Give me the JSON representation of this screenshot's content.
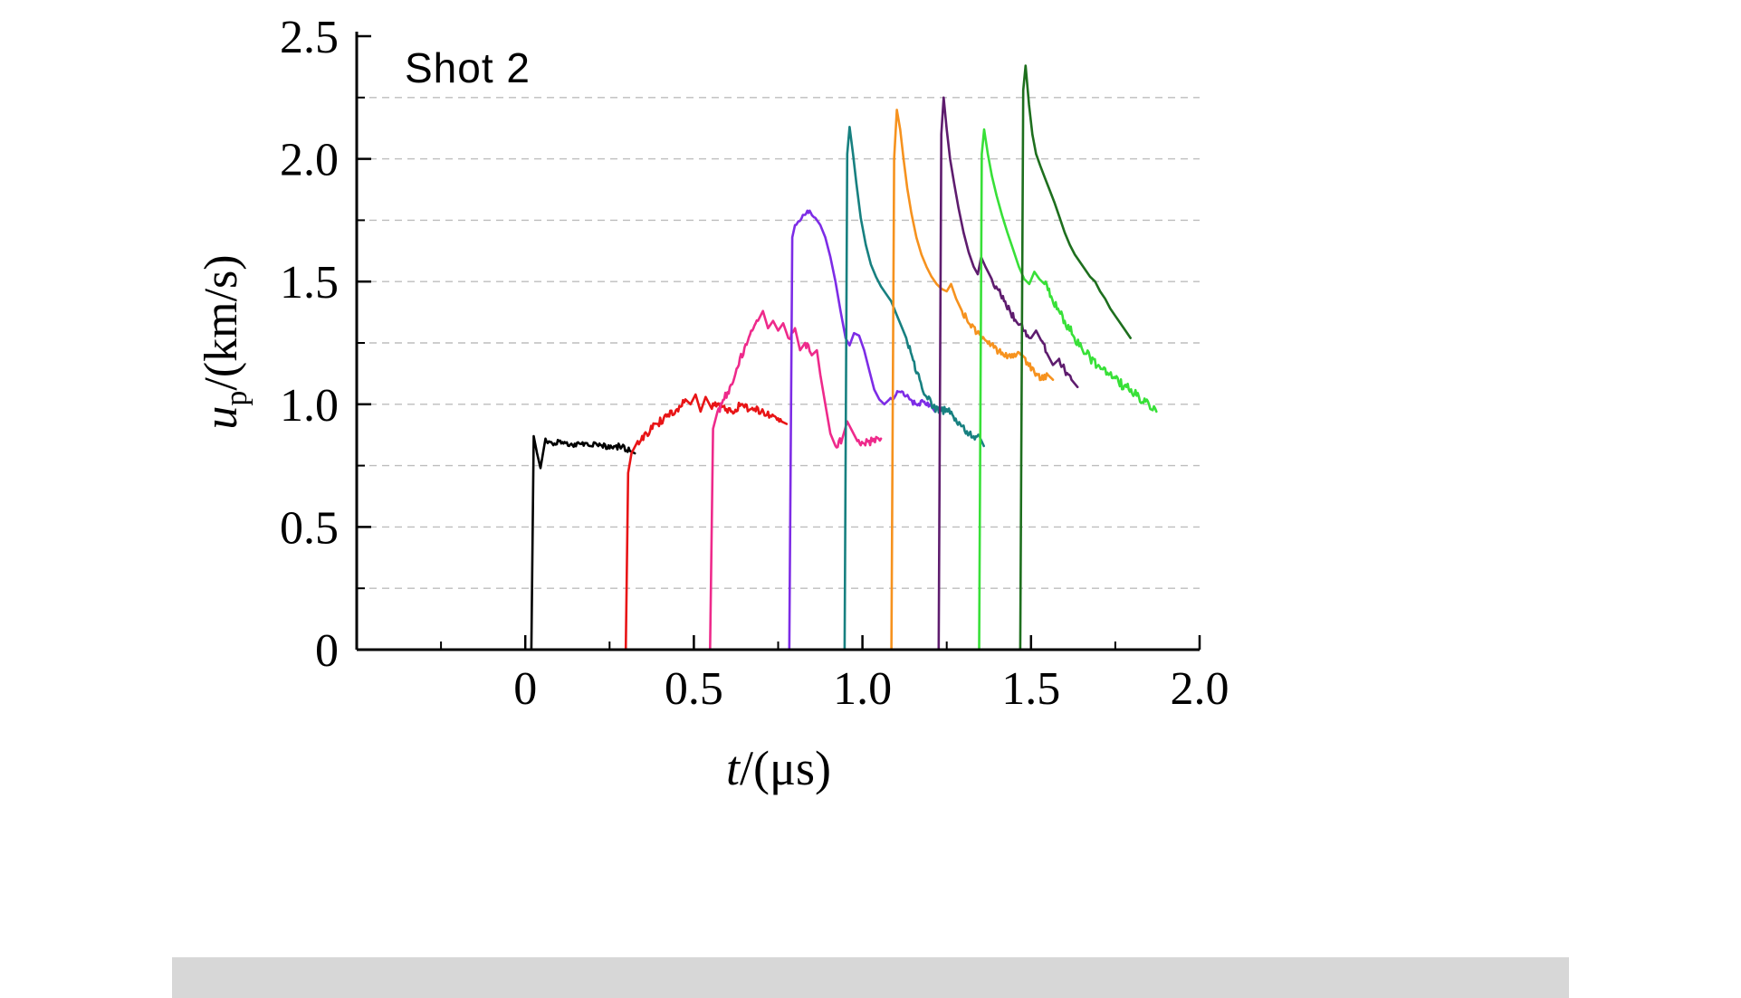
{
  "chart": {
    "title": "Shot 2",
    "xlabel": {
      "var": "t",
      "rest": "/(μs)"
    },
    "ylabel": {
      "var": "u",
      "sub": "p",
      "rest": "/(km/s)"
    }
  },
  "chart_data": {
    "type": "line",
    "title": "Shot 2",
    "xlabel": "t/(μs)",
    "ylabel": "u_p/(km/s)",
    "xlim": [
      -0.5,
      2.0
    ],
    "ylim": [
      0,
      2.5
    ],
    "x_tick_values": [
      0,
      0.5,
      1.0,
      1.5,
      2.0
    ],
    "x_tick_labels": [
      "0",
      "0.5",
      "1.0",
      "1.5",
      "2.0"
    ],
    "x_minor_tick_values": [
      -0.25,
      0.25,
      0.75,
      1.25,
      1.75
    ],
    "y_tick_values": [
      0,
      0.5,
      1.0,
      1.5,
      2.0,
      2.5
    ],
    "y_tick_labels": [
      "0",
      "0.5",
      "1.0",
      "1.5",
      "2.0",
      "2.5"
    ],
    "y_minor_tick_values": [
      0.25,
      0.75,
      1.25,
      1.75,
      2.25
    ],
    "grid": {
      "y_step": 0.25,
      "style": "dashed",
      "color": "#bdbdbd"
    },
    "legend": "none",
    "series": [
      {
        "name": "trace-black",
        "color": "#000000",
        "noise": 0.012,
        "points": [
          [
            0.018,
            0
          ],
          [
            0.025,
            0.87
          ],
          [
            0.035,
            0.8
          ],
          [
            0.045,
            0.74
          ],
          [
            0.06,
            0.86
          ],
          [
            0.08,
            0.84
          ],
          [
            0.1,
            0.85
          ],
          [
            0.13,
            0.83
          ],
          [
            0.16,
            0.84
          ],
          [
            0.19,
            0.83
          ],
          [
            0.22,
            0.84
          ],
          [
            0.25,
            0.82
          ],
          [
            0.28,
            0.83
          ],
          [
            0.31,
            0.81
          ],
          [
            0.325,
            0.8
          ]
        ]
      },
      {
        "name": "trace-red",
        "color": "#e81416",
        "noise": 0.016,
        "points": [
          [
            0.298,
            0
          ],
          [
            0.305,
            0.72
          ],
          [
            0.315,
            0.8
          ],
          [
            0.33,
            0.84
          ],
          [
            0.36,
            0.88
          ],
          [
            0.39,
            0.92
          ],
          [
            0.42,
            0.95
          ],
          [
            0.45,
            0.98
          ],
          [
            0.475,
            1.02
          ],
          [
            0.49,
            1.0
          ],
          [
            0.505,
            1.04
          ],
          [
            0.52,
            0.97
          ],
          [
            0.535,
            1.03
          ],
          [
            0.55,
            0.99
          ],
          [
            0.58,
            1.0
          ],
          [
            0.61,
            0.97
          ],
          [
            0.64,
            1.0
          ],
          [
            0.67,
            0.98
          ],
          [
            0.7,
            0.97
          ],
          [
            0.73,
            0.95
          ],
          [
            0.76,
            0.93
          ],
          [
            0.775,
            0.92
          ]
        ]
      },
      {
        "name": "trace-magenta",
        "color": "#ee2a8b",
        "noise": 0.018,
        "points": [
          [
            0.548,
            0
          ],
          [
            0.557,
            0.9
          ],
          [
            0.57,
            0.97
          ],
          [
            0.59,
            1.02
          ],
          [
            0.61,
            1.08
          ],
          [
            0.63,
            1.15
          ],
          [
            0.65,
            1.23
          ],
          [
            0.67,
            1.3
          ],
          [
            0.69,
            1.34
          ],
          [
            0.705,
            1.38
          ],
          [
            0.72,
            1.31
          ],
          [
            0.735,
            1.34
          ],
          [
            0.75,
            1.3
          ],
          [
            0.765,
            1.33
          ],
          [
            0.78,
            1.27
          ],
          [
            0.8,
            1.31
          ],
          [
            0.815,
            1.22
          ],
          [
            0.83,
            1.25
          ],
          [
            0.85,
            1.2
          ],
          [
            0.865,
            1.22
          ],
          [
            0.875,
            1.12
          ],
          [
            0.89,
            1.0
          ],
          [
            0.905,
            0.88
          ],
          [
            0.92,
            0.83
          ],
          [
            0.94,
            0.86
          ],
          [
            0.955,
            0.93
          ],
          [
            0.97,
            0.89
          ],
          [
            0.985,
            0.85
          ],
          [
            1.005,
            0.84
          ],
          [
            1.03,
            0.85
          ],
          [
            1.055,
            0.86
          ]
        ]
      },
      {
        "name": "trace-violet",
        "color": "#7d2ce6",
        "noise": 0.013,
        "points": [
          [
            0.783,
            0
          ],
          [
            0.792,
            1.68
          ],
          [
            0.8,
            1.73
          ],
          [
            0.82,
            1.76
          ],
          [
            0.84,
            1.78
          ],
          [
            0.86,
            1.76
          ],
          [
            0.875,
            1.73
          ],
          [
            0.89,
            1.68
          ],
          [
            0.905,
            1.6
          ],
          [
            0.92,
            1.5
          ],
          [
            0.935,
            1.38
          ],
          [
            0.95,
            1.27
          ],
          [
            0.962,
            1.24
          ],
          [
            0.975,
            1.29
          ],
          [
            0.99,
            1.28
          ],
          [
            1.005,
            1.22
          ],
          [
            1.02,
            1.14
          ],
          [
            1.035,
            1.06
          ],
          [
            1.05,
            1.02
          ],
          [
            1.065,
            1.0
          ],
          [
            1.08,
            1.02
          ],
          [
            1.1,
            1.04
          ],
          [
            1.12,
            1.05
          ],
          [
            1.14,
            1.02
          ],
          [
            1.16,
            1.0
          ],
          [
            1.18,
            1.01
          ],
          [
            1.2,
            1.0
          ],
          [
            1.215,
            0.97
          ]
        ]
      },
      {
        "name": "trace-teal",
        "color": "#178080",
        "noise": 0.015,
        "points": [
          [
            0.947,
            0
          ],
          [
            0.955,
            2.02
          ],
          [
            0.962,
            2.13
          ],
          [
            0.972,
            2.02
          ],
          [
            0.982,
            1.9
          ],
          [
            0.995,
            1.76
          ],
          [
            1.01,
            1.65
          ],
          [
            1.025,
            1.57
          ],
          [
            1.04,
            1.52
          ],
          [
            1.055,
            1.48
          ],
          [
            1.07,
            1.45
          ],
          [
            1.085,
            1.42
          ],
          [
            1.1,
            1.37
          ],
          [
            1.115,
            1.32
          ],
          [
            1.13,
            1.27
          ],
          [
            1.15,
            1.18
          ],
          [
            1.17,
            1.1
          ],
          [
            1.19,
            1.03
          ],
          [
            1.21,
            0.99
          ],
          [
            1.23,
            0.97
          ],
          [
            1.25,
            0.98
          ],
          [
            1.27,
            0.95
          ],
          [
            1.29,
            0.92
          ],
          [
            1.31,
            0.89
          ],
          [
            1.33,
            0.87
          ],
          [
            1.35,
            0.86
          ],
          [
            1.36,
            0.83
          ]
        ]
      },
      {
        "name": "trace-orange",
        "color": "#f6921e",
        "noise": 0.015,
        "points": [
          [
            1.086,
            0
          ],
          [
            1.094,
            2.0
          ],
          [
            1.102,
            2.2
          ],
          [
            1.112,
            2.12
          ],
          [
            1.122,
            2.0
          ],
          [
            1.133,
            1.88
          ],
          [
            1.145,
            1.78
          ],
          [
            1.16,
            1.68
          ],
          [
            1.175,
            1.61
          ],
          [
            1.19,
            1.56
          ],
          [
            1.205,
            1.52
          ],
          [
            1.22,
            1.49
          ],
          [
            1.235,
            1.47
          ],
          [
            1.25,
            1.46
          ],
          [
            1.263,
            1.49
          ],
          [
            1.278,
            1.43
          ],
          [
            1.295,
            1.38
          ],
          [
            1.315,
            1.33
          ],
          [
            1.34,
            1.29
          ],
          [
            1.365,
            1.26
          ],
          [
            1.39,
            1.23
          ],
          [
            1.415,
            1.21
          ],
          [
            1.44,
            1.19
          ],
          [
            1.465,
            1.21
          ],
          [
            1.49,
            1.17
          ],
          [
            1.51,
            1.13
          ],
          [
            1.53,
            1.1
          ],
          [
            1.55,
            1.12
          ],
          [
            1.565,
            1.1
          ]
        ]
      },
      {
        "name": "trace-dark-purple",
        "color": "#5e1c6e",
        "noise": 0.015,
        "points": [
          [
            1.226,
            0
          ],
          [
            1.234,
            2.1
          ],
          [
            1.241,
            2.25
          ],
          [
            1.25,
            2.12
          ],
          [
            1.26,
            2.0
          ],
          [
            1.272,
            1.9
          ],
          [
            1.285,
            1.8
          ],
          [
            1.3,
            1.7
          ],
          [
            1.315,
            1.62
          ],
          [
            1.33,
            1.56
          ],
          [
            1.342,
            1.53
          ],
          [
            1.352,
            1.6
          ],
          [
            1.365,
            1.56
          ],
          [
            1.38,
            1.52
          ],
          [
            1.4,
            1.47
          ],
          [
            1.42,
            1.42
          ],
          [
            1.44,
            1.37
          ],
          [
            1.46,
            1.33
          ],
          [
            1.48,
            1.3
          ],
          [
            1.5,
            1.27
          ],
          [
            1.515,
            1.3
          ],
          [
            1.53,
            1.26
          ],
          [
            1.55,
            1.2
          ],
          [
            1.565,
            1.16
          ],
          [
            1.58,
            1.18
          ],
          [
            1.6,
            1.14
          ],
          [
            1.62,
            1.1
          ],
          [
            1.638,
            1.07
          ]
        ]
      },
      {
        "name": "trace-bright-green",
        "color": "#38e038",
        "noise": 0.02,
        "points": [
          [
            1.346,
            0
          ],
          [
            1.354,
            2.02
          ],
          [
            1.361,
            2.12
          ],
          [
            1.372,
            2.02
          ],
          [
            1.384,
            1.93
          ],
          [
            1.398,
            1.85
          ],
          [
            1.414,
            1.77
          ],
          [
            1.43,
            1.7
          ],
          [
            1.447,
            1.63
          ],
          [
            1.464,
            1.56
          ],
          [
            1.48,
            1.51
          ],
          [
            1.495,
            1.49
          ],
          [
            1.51,
            1.54
          ],
          [
            1.525,
            1.51
          ],
          [
            1.54,
            1.49
          ],
          [
            1.56,
            1.44
          ],
          [
            1.58,
            1.39
          ],
          [
            1.6,
            1.34
          ],
          [
            1.625,
            1.28
          ],
          [
            1.65,
            1.23
          ],
          [
            1.675,
            1.19
          ],
          [
            1.7,
            1.16
          ],
          [
            1.73,
            1.12
          ],
          [
            1.76,
            1.09
          ],
          [
            1.79,
            1.06
          ],
          [
            1.82,
            1.03
          ],
          [
            1.85,
            1.0
          ],
          [
            1.872,
            0.97
          ]
        ]
      },
      {
        "name": "trace-dark-green",
        "color": "#1e6f1e",
        "noise": 0.018,
        "points": [
          [
            1.468,
            0
          ],
          [
            1.477,
            2.28
          ],
          [
            1.484,
            2.38
          ],
          [
            1.494,
            2.22
          ],
          [
            1.504,
            2.1
          ],
          [
            1.515,
            2.02
          ],
          [
            1.528,
            1.97
          ],
          [
            1.542,
            1.92
          ],
          [
            1.556,
            1.87
          ],
          [
            1.57,
            1.82
          ],
          [
            1.585,
            1.76
          ],
          [
            1.6,
            1.7
          ],
          [
            1.615,
            1.65
          ],
          [
            1.63,
            1.61
          ],
          [
            1.645,
            1.58
          ],
          [
            1.66,
            1.55
          ],
          [
            1.675,
            1.52
          ],
          [
            1.69,
            1.5
          ],
          [
            1.705,
            1.46
          ],
          [
            1.72,
            1.43
          ],
          [
            1.735,
            1.39
          ],
          [
            1.75,
            1.36
          ],
          [
            1.765,
            1.33
          ],
          [
            1.78,
            1.3
          ],
          [
            1.795,
            1.27
          ]
        ]
      }
    ]
  }
}
